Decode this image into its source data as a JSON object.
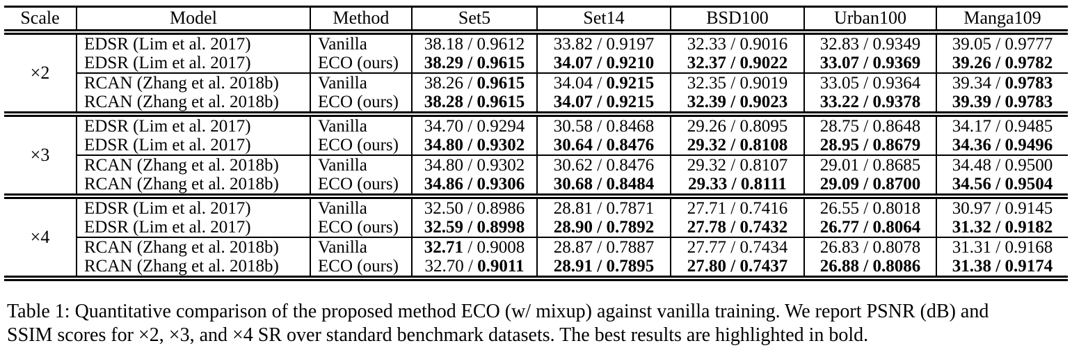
{
  "colors": {
    "text": "#000000",
    "background": "#ffffff",
    "rule": "#000000"
  },
  "table": {
    "headers": [
      "Scale",
      "Model",
      "Method",
      "Set5",
      "Set14",
      "BSD100",
      "Urban100",
      "Manga109"
    ],
    "separator": "/",
    "groups": [
      {
        "scale": "×2",
        "rows": [
          {
            "model": "EDSR (Lim et al. 2017)",
            "method": "Vanilla",
            "cells": [
              {
                "psnr": "38.18",
                "ssim": "0.9612",
                "bold": [
                  false,
                  false
                ]
              },
              {
                "psnr": "33.82",
                "ssim": "0.9197",
                "bold": [
                  false,
                  false
                ]
              },
              {
                "psnr": "32.33",
                "ssim": "0.9016",
                "bold": [
                  false,
                  false
                ]
              },
              {
                "psnr": "32.83",
                "ssim": "0.9349",
                "bold": [
                  false,
                  false
                ]
              },
              {
                "psnr": "39.05",
                "ssim": "0.9777",
                "bold": [
                  false,
                  false
                ]
              }
            ]
          },
          {
            "model": "EDSR (Lim et al. 2017)",
            "method": "ECO (ours)",
            "cells": [
              {
                "psnr": "38.29",
                "ssim": "0.9615",
                "bold": [
                  true,
                  true
                ]
              },
              {
                "psnr": "34.07",
                "ssim": "0.9210",
                "bold": [
                  true,
                  true
                ]
              },
              {
                "psnr": "32.37",
                "ssim": "0.9022",
                "bold": [
                  true,
                  true
                ]
              },
              {
                "psnr": "33.07",
                "ssim": "0.9369",
                "bold": [
                  true,
                  true
                ]
              },
              {
                "psnr": "39.26",
                "ssim": "0.9782",
                "bold": [
                  true,
                  true
                ]
              }
            ]
          },
          {
            "model": "RCAN (Zhang et al. 2018b)",
            "method": "Vanilla",
            "cells": [
              {
                "psnr": "38.26",
                "ssim": "0.9615",
                "bold": [
                  false,
                  true
                ]
              },
              {
                "psnr": "34.04",
                "ssim": "0.9215",
                "bold": [
                  false,
                  true
                ]
              },
              {
                "psnr": "32.35",
                "ssim": "0.9019",
                "bold": [
                  false,
                  false
                ]
              },
              {
                "psnr": "33.05",
                "ssim": "0.9364",
                "bold": [
                  false,
                  false
                ]
              },
              {
                "psnr": "39.34",
                "ssim": "0.9783",
                "bold": [
                  false,
                  true
                ]
              }
            ]
          },
          {
            "model": "RCAN (Zhang et al. 2018b)",
            "method": "ECO (ours)",
            "cells": [
              {
                "psnr": "38.28",
                "ssim": "0.9615",
                "bold": [
                  true,
                  true
                ]
              },
              {
                "psnr": "34.07",
                "ssim": "0.9215",
                "bold": [
                  true,
                  true
                ]
              },
              {
                "psnr": "32.39",
                "ssim": "0.9023",
                "bold": [
                  true,
                  true
                ]
              },
              {
                "psnr": "33.22",
                "ssim": "0.9378",
                "bold": [
                  true,
                  true
                ]
              },
              {
                "psnr": "39.39",
                "ssim": "0.9783",
                "bold": [
                  true,
                  true
                ]
              }
            ]
          }
        ]
      },
      {
        "scale": "×3",
        "rows": [
          {
            "model": "EDSR (Lim et al. 2017)",
            "method": "Vanilla",
            "cells": [
              {
                "psnr": "34.70",
                "ssim": "0.9294",
                "bold": [
                  false,
                  false
                ]
              },
              {
                "psnr": "30.58",
                "ssim": "0.8468",
                "bold": [
                  false,
                  false
                ]
              },
              {
                "psnr": "29.26",
                "ssim": "0.8095",
                "bold": [
                  false,
                  false
                ]
              },
              {
                "psnr": "28.75",
                "ssim": "0.8648",
                "bold": [
                  false,
                  false
                ]
              },
              {
                "psnr": "34.17",
                "ssim": "0.9485",
                "bold": [
                  false,
                  false
                ]
              }
            ]
          },
          {
            "model": "EDSR (Lim et al. 2017)",
            "method": "ECO (ours)",
            "cells": [
              {
                "psnr": "34.80",
                "ssim": "0.9302",
                "bold": [
                  true,
                  true
                ]
              },
              {
                "psnr": "30.64",
                "ssim": "0.8476",
                "bold": [
                  true,
                  true
                ]
              },
              {
                "psnr": "29.32",
                "ssim": "0.8108",
                "bold": [
                  true,
                  true
                ]
              },
              {
                "psnr": "28.95",
                "ssim": "0.8679",
                "bold": [
                  true,
                  true
                ]
              },
              {
                "psnr": "34.36",
                "ssim": "0.9496",
                "bold": [
                  true,
                  true
                ]
              }
            ]
          },
          {
            "model": "RCAN (Zhang et al. 2018b)",
            "method": "Vanilla",
            "cells": [
              {
                "psnr": "34.80",
                "ssim": "0.9302",
                "bold": [
                  false,
                  false
                ]
              },
              {
                "psnr": "30.62",
                "ssim": "0.8476",
                "bold": [
                  false,
                  false
                ]
              },
              {
                "psnr": "29.32",
                "ssim": "0.8107",
                "bold": [
                  false,
                  false
                ]
              },
              {
                "psnr": "29.01",
                "ssim": "0.8685",
                "bold": [
                  false,
                  false
                ]
              },
              {
                "psnr": "34.48",
                "ssim": "0.9500",
                "bold": [
                  false,
                  false
                ]
              }
            ]
          },
          {
            "model": "RCAN (Zhang et al. 2018b)",
            "method": "ECO (ours)",
            "cells": [
              {
                "psnr": "34.86",
                "ssim": "0.9306",
                "bold": [
                  true,
                  true
                ]
              },
              {
                "psnr": "30.68",
                "ssim": "0.8484",
                "bold": [
                  true,
                  true
                ]
              },
              {
                "psnr": "29.33",
                "ssim": "0.8111",
                "bold": [
                  true,
                  true
                ]
              },
              {
                "psnr": "29.09",
                "ssim": "0.8700",
                "bold": [
                  true,
                  true
                ]
              },
              {
                "psnr": "34.56",
                "ssim": "0.9504",
                "bold": [
                  true,
                  true
                ]
              }
            ]
          }
        ]
      },
      {
        "scale": "×4",
        "rows": [
          {
            "model": "EDSR (Lim et al. 2017)",
            "method": "Vanilla",
            "cells": [
              {
                "psnr": "32.50",
                "ssim": "0.8986",
                "bold": [
                  false,
                  false
                ]
              },
              {
                "psnr": "28.81",
                "ssim": "0.7871",
                "bold": [
                  false,
                  false
                ]
              },
              {
                "psnr": "27.71",
                "ssim": "0.7416",
                "bold": [
                  false,
                  false
                ]
              },
              {
                "psnr": "26.55",
                "ssim": "0.8018",
                "bold": [
                  false,
                  false
                ]
              },
              {
                "psnr": "30.97",
                "ssim": "0.9145",
                "bold": [
                  false,
                  false
                ]
              }
            ]
          },
          {
            "model": "EDSR (Lim et al. 2017)",
            "method": "ECO (ours)",
            "cells": [
              {
                "psnr": "32.59",
                "ssim": "0.8998",
                "bold": [
                  true,
                  true
                ]
              },
              {
                "psnr": "28.90",
                "ssim": "0.7892",
                "bold": [
                  true,
                  true
                ]
              },
              {
                "psnr": "27.78",
                "ssim": "0.7432",
                "bold": [
                  true,
                  true
                ]
              },
              {
                "psnr": "26.77",
                "ssim": "0.8064",
                "bold": [
                  true,
                  true
                ]
              },
              {
                "psnr": "31.32",
                "ssim": "0.9182",
                "bold": [
                  true,
                  true
                ]
              }
            ]
          },
          {
            "model": "RCAN (Zhang et al. 2018b)",
            "method": "Vanilla",
            "cells": [
              {
                "psnr": "32.71",
                "ssim": "0.9008",
                "bold": [
                  true,
                  false
                ]
              },
              {
                "psnr": "28.87",
                "ssim": "0.7887",
                "bold": [
                  false,
                  false
                ]
              },
              {
                "psnr": "27.77",
                "ssim": "0.7434",
                "bold": [
                  false,
                  false
                ]
              },
              {
                "psnr": "26.83",
                "ssim": "0.8078",
                "bold": [
                  false,
                  false
                ]
              },
              {
                "psnr": "31.31",
                "ssim": "0.9168",
                "bold": [
                  false,
                  false
                ]
              }
            ]
          },
          {
            "model": "RCAN (Zhang et al. 2018b)",
            "method": "ECO (ours)",
            "cells": [
              {
                "psnr": "32.70",
                "ssim": "0.9011",
                "bold": [
                  false,
                  true
                ]
              },
              {
                "psnr": "28.91",
                "ssim": "0.7895",
                "bold": [
                  true,
                  true
                ]
              },
              {
                "psnr": "27.80",
                "ssim": "0.7437",
                "bold": [
                  true,
                  true
                ]
              },
              {
                "psnr": "26.88",
                "ssim": "0.8086",
                "bold": [
                  true,
                  true
                ]
              },
              {
                "psnr": "31.38",
                "ssim": "0.9174",
                "bold": [
                  true,
                  true
                ]
              }
            ]
          }
        ]
      }
    ]
  },
  "caption": {
    "lines": [
      "Table 1: Quantitative comparison of the proposed method ECO (w/ mixup) against vanilla training. We report PSNR (dB) and",
      "SSIM scores for ×2, ×3, and ×4 SR over standard benchmark datasets. The best results are highlighted in bold."
    ]
  }
}
